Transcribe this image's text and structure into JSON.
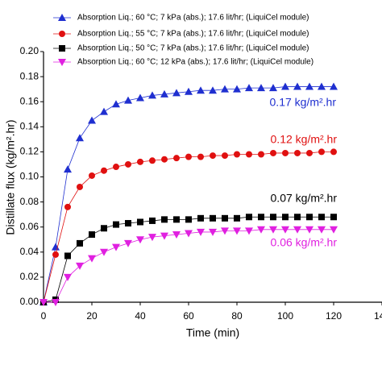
{
  "chart_data": {
    "type": "line",
    "x_label": "Time (min)",
    "y_label": "Distillate flux (kg/m².hr)",
    "x": [
      0,
      5,
      10,
      15,
      20,
      25,
      30,
      35,
      40,
      45,
      50,
      55,
      60,
      65,
      70,
      75,
      80,
      85,
      90,
      95,
      100,
      105,
      110,
      115,
      120
    ],
    "series": [
      {
        "name": "Absorption Liq.; 60 °C; 7 kPa (abs.); 17.6 lit/hr; (LiquiCel module)",
        "color": "#1f2fd0",
        "marker": "triangle",
        "values": [
          0,
          0.044,
          0.106,
          0.131,
          0.145,
          0.152,
          0.158,
          0.161,
          0.163,
          0.165,
          0.166,
          0.167,
          0.168,
          0.169,
          0.169,
          0.17,
          0.17,
          0.171,
          0.171,
          0.171,
          0.172,
          0.172,
          0.172,
          0.172,
          0.172
        ]
      },
      {
        "name": "Absorption Liq.; 55 °C; 7 kPa (abs.); 17.6 lit/hr; (LiquiCel module)",
        "color": "#e01010",
        "marker": "circle",
        "values": [
          0,
          0.038,
          0.076,
          0.092,
          0.101,
          0.105,
          0.108,
          0.11,
          0.112,
          0.113,
          0.114,
          0.115,
          0.116,
          0.116,
          0.117,
          0.117,
          0.118,
          0.118,
          0.118,
          0.119,
          0.119,
          0.119,
          0.119,
          0.12,
          0.12
        ]
      },
      {
        "name": "Absorption Liq.; 50 °C; 7 kPa (abs.); 17.6 lit/hr; (LiquiCel module)",
        "color": "#000000",
        "marker": "square",
        "values": [
          0,
          0.002,
          0.037,
          0.047,
          0.054,
          0.059,
          0.062,
          0.063,
          0.064,
          0.065,
          0.066,
          0.066,
          0.066,
          0.067,
          0.067,
          0.067,
          0.067,
          0.068,
          0.068,
          0.068,
          0.068,
          0.068,
          0.068,
          0.068,
          0.068
        ]
      },
      {
        "name": "Absorption Liq.; 60 °C; 12 kPa (abs.); 17.6 lit/hr; (LiquiCel module)",
        "color": "#e020e0",
        "marker": "down-triangle",
        "values": [
          0,
          0,
          0.02,
          0.029,
          0.035,
          0.04,
          0.044,
          0.047,
          0.05,
          0.052,
          0.053,
          0.054,
          0.055,
          0.056,
          0.056,
          0.057,
          0.057,
          0.057,
          0.058,
          0.058,
          0.058,
          0.058,
          0.058,
          0.058,
          0.058
        ]
      }
    ],
    "annotations": [
      {
        "text": "0.17 kg/m².hr",
        "color": "#1f2fd0"
      },
      {
        "text": "0.12 kg/m².hr",
        "color": "#e01010"
      },
      {
        "text": "0.07 kg/m².hr",
        "color": "#000000"
      },
      {
        "text": "0.06 kg/m².hr",
        "color": "#e020e0"
      }
    ],
    "xlim": [
      0,
      140
    ],
    "xticks": [
      0,
      20,
      40,
      60,
      80,
      100,
      120,
      140
    ],
    "ylim": [
      0,
      0.2
    ],
    "yticks": [
      {
        "value": 0,
        "label": "0.00"
      },
      {
        "value": 0.02,
        "label": "0.02"
      },
      {
        "value": 0.04,
        "label": "0.04"
      },
      {
        "value": 0.06,
        "label": "0.06"
      },
      {
        "value": 0.08,
        "label": "0.08"
      },
      {
        "value": 0.1,
        "label": "0.10"
      },
      {
        "value": 0.12,
        "label": "0.12"
      },
      {
        "value": 0.14,
        "label": "0.14"
      },
      {
        "value": 0.16,
        "label": "0.16"
      },
      {
        "value": 0.18,
        "label": "0.18"
      },
      {
        "value": 0.2,
        "label": "0.20"
      }
    ]
  }
}
